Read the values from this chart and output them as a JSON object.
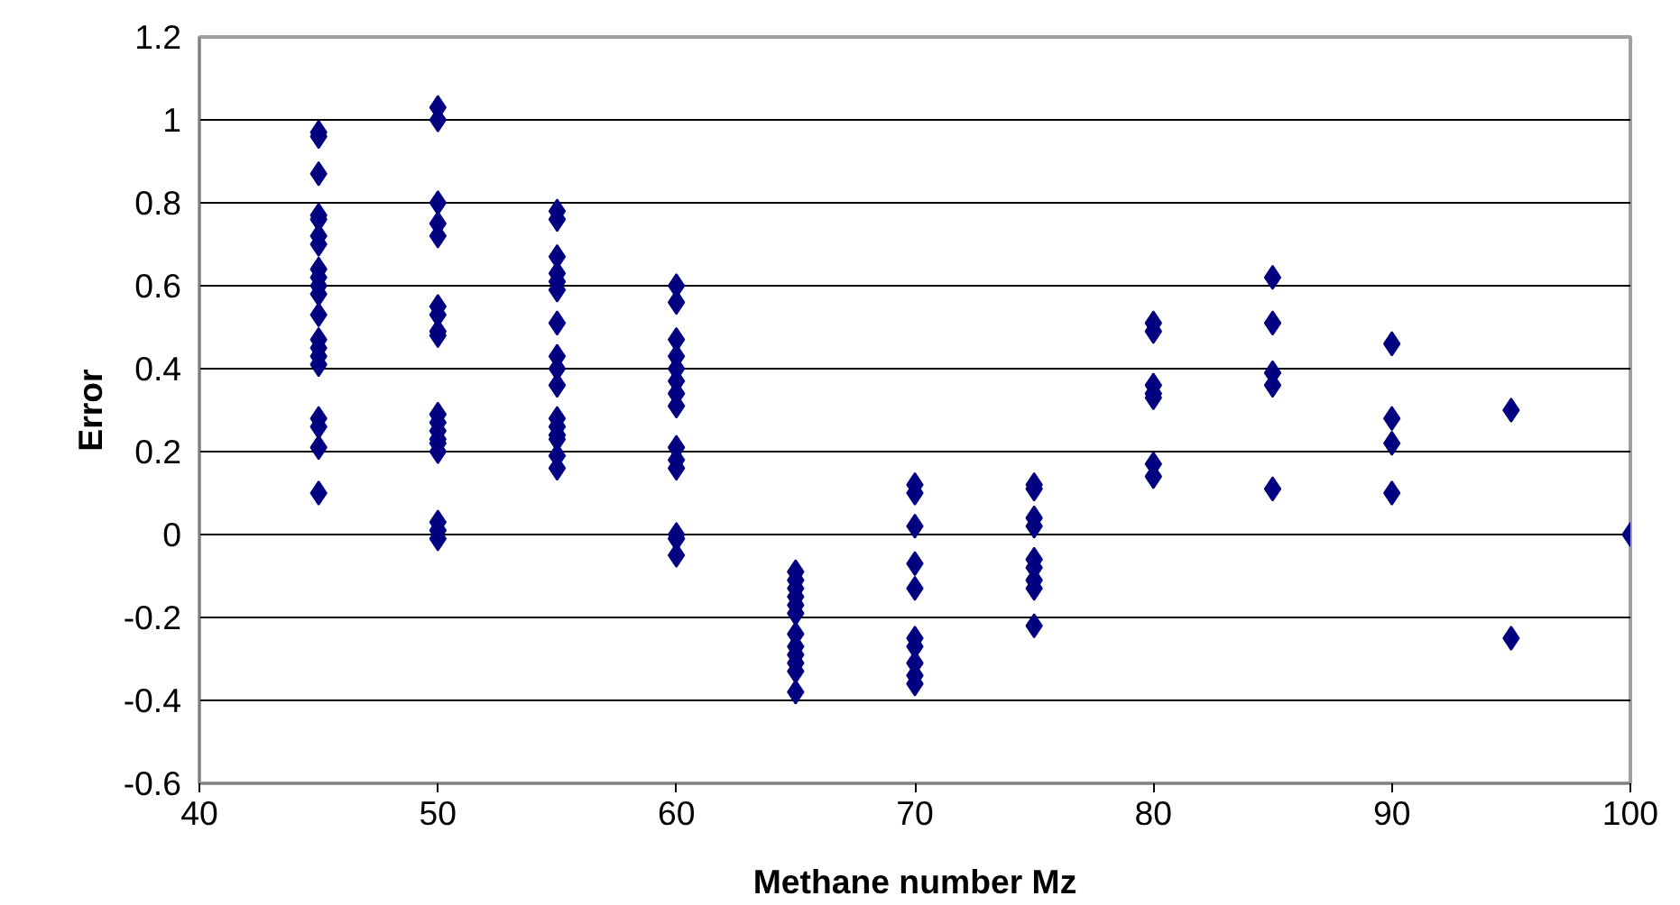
{
  "chart_data": {
    "type": "scatter",
    "xlabel": "Methane number Mz",
    "ylabel": "Error",
    "marker": "diamond",
    "grid": "y",
    "xlim": [
      40,
      100
    ],
    "xticks": [
      40,
      50,
      60,
      70,
      80,
      90,
      100
    ],
    "ylim": [
      -0.6,
      1.2
    ],
    "yticks": [
      -0.6,
      -0.4,
      -0.2,
      0,
      0.2,
      0.4,
      0.6,
      0.8,
      1,
      1.2
    ],
    "series": [
      {
        "color": "#000080",
        "x": [
          45,
          45,
          45,
          45,
          45,
          45,
          45,
          45,
          45,
          45,
          45,
          45,
          45,
          45,
          45,
          45,
          45,
          45,
          45,
          45,
          50,
          50,
          50,
          50,
          50,
          50,
          50,
          50,
          50,
          50,
          50,
          50,
          50,
          50,
          50,
          50,
          50,
          50,
          55,
          55,
          55,
          55,
          55,
          55,
          55,
          55,
          55,
          55,
          55,
          55,
          55,
          55,
          55,
          55,
          60,
          60,
          60,
          60,
          60,
          60,
          60,
          60,
          60,
          60,
          60,
          60,
          60,
          60,
          65,
          65,
          65,
          65,
          65,
          65,
          65,
          65,
          65,
          65,
          65,
          65,
          70,
          70,
          70,
          70,
          70,
          70,
          70,
          70,
          70,
          70,
          75,
          75,
          75,
          75,
          75,
          75,
          75,
          75,
          75,
          80,
          80,
          80,
          80,
          80,
          80,
          80,
          85,
          85,
          85,
          85,
          85,
          90,
          90,
          90,
          90,
          95,
          95,
          100
        ],
        "values": [
          0.97,
          0.96,
          0.87,
          0.77,
          0.76,
          0.72,
          0.7,
          0.64,
          0.62,
          0.6,
          0.58,
          0.53,
          0.47,
          0.45,
          0.43,
          0.41,
          0.28,
          0.26,
          0.21,
          0.1,
          1.03,
          1.0,
          0.8,
          0.75,
          0.72,
          0.55,
          0.53,
          0.49,
          0.48,
          0.29,
          0.27,
          0.25,
          0.23,
          0.22,
          0.2,
          0.03,
          0.01,
          -0.01,
          0.78,
          0.76,
          0.67,
          0.63,
          0.61,
          0.59,
          0.51,
          0.43,
          0.4,
          0.36,
          0.28,
          0.26,
          0.24,
          0.23,
          0.19,
          0.16,
          0.6,
          0.56,
          0.47,
          0.43,
          0.4,
          0.37,
          0.34,
          0.31,
          0.21,
          0.18,
          0.16,
          0.0,
          -0.01,
          -0.05,
          -0.09,
          -0.11,
          -0.13,
          -0.15,
          -0.17,
          -0.19,
          -0.24,
          -0.27,
          -0.29,
          -0.31,
          -0.33,
          -0.38,
          0.12,
          0.1,
          0.02,
          -0.07,
          -0.13,
          -0.25,
          -0.27,
          -0.31,
          -0.34,
          -0.36,
          0.12,
          0.11,
          0.04,
          0.02,
          -0.06,
          -0.08,
          -0.11,
          -0.13,
          -0.22,
          0.51,
          0.49,
          0.36,
          0.34,
          0.33,
          0.17,
          0.14,
          0.62,
          0.51,
          0.39,
          0.36,
          0.11,
          0.46,
          0.28,
          0.22,
          0.1,
          0.3,
          -0.25,
          0.0
        ]
      }
    ]
  }
}
